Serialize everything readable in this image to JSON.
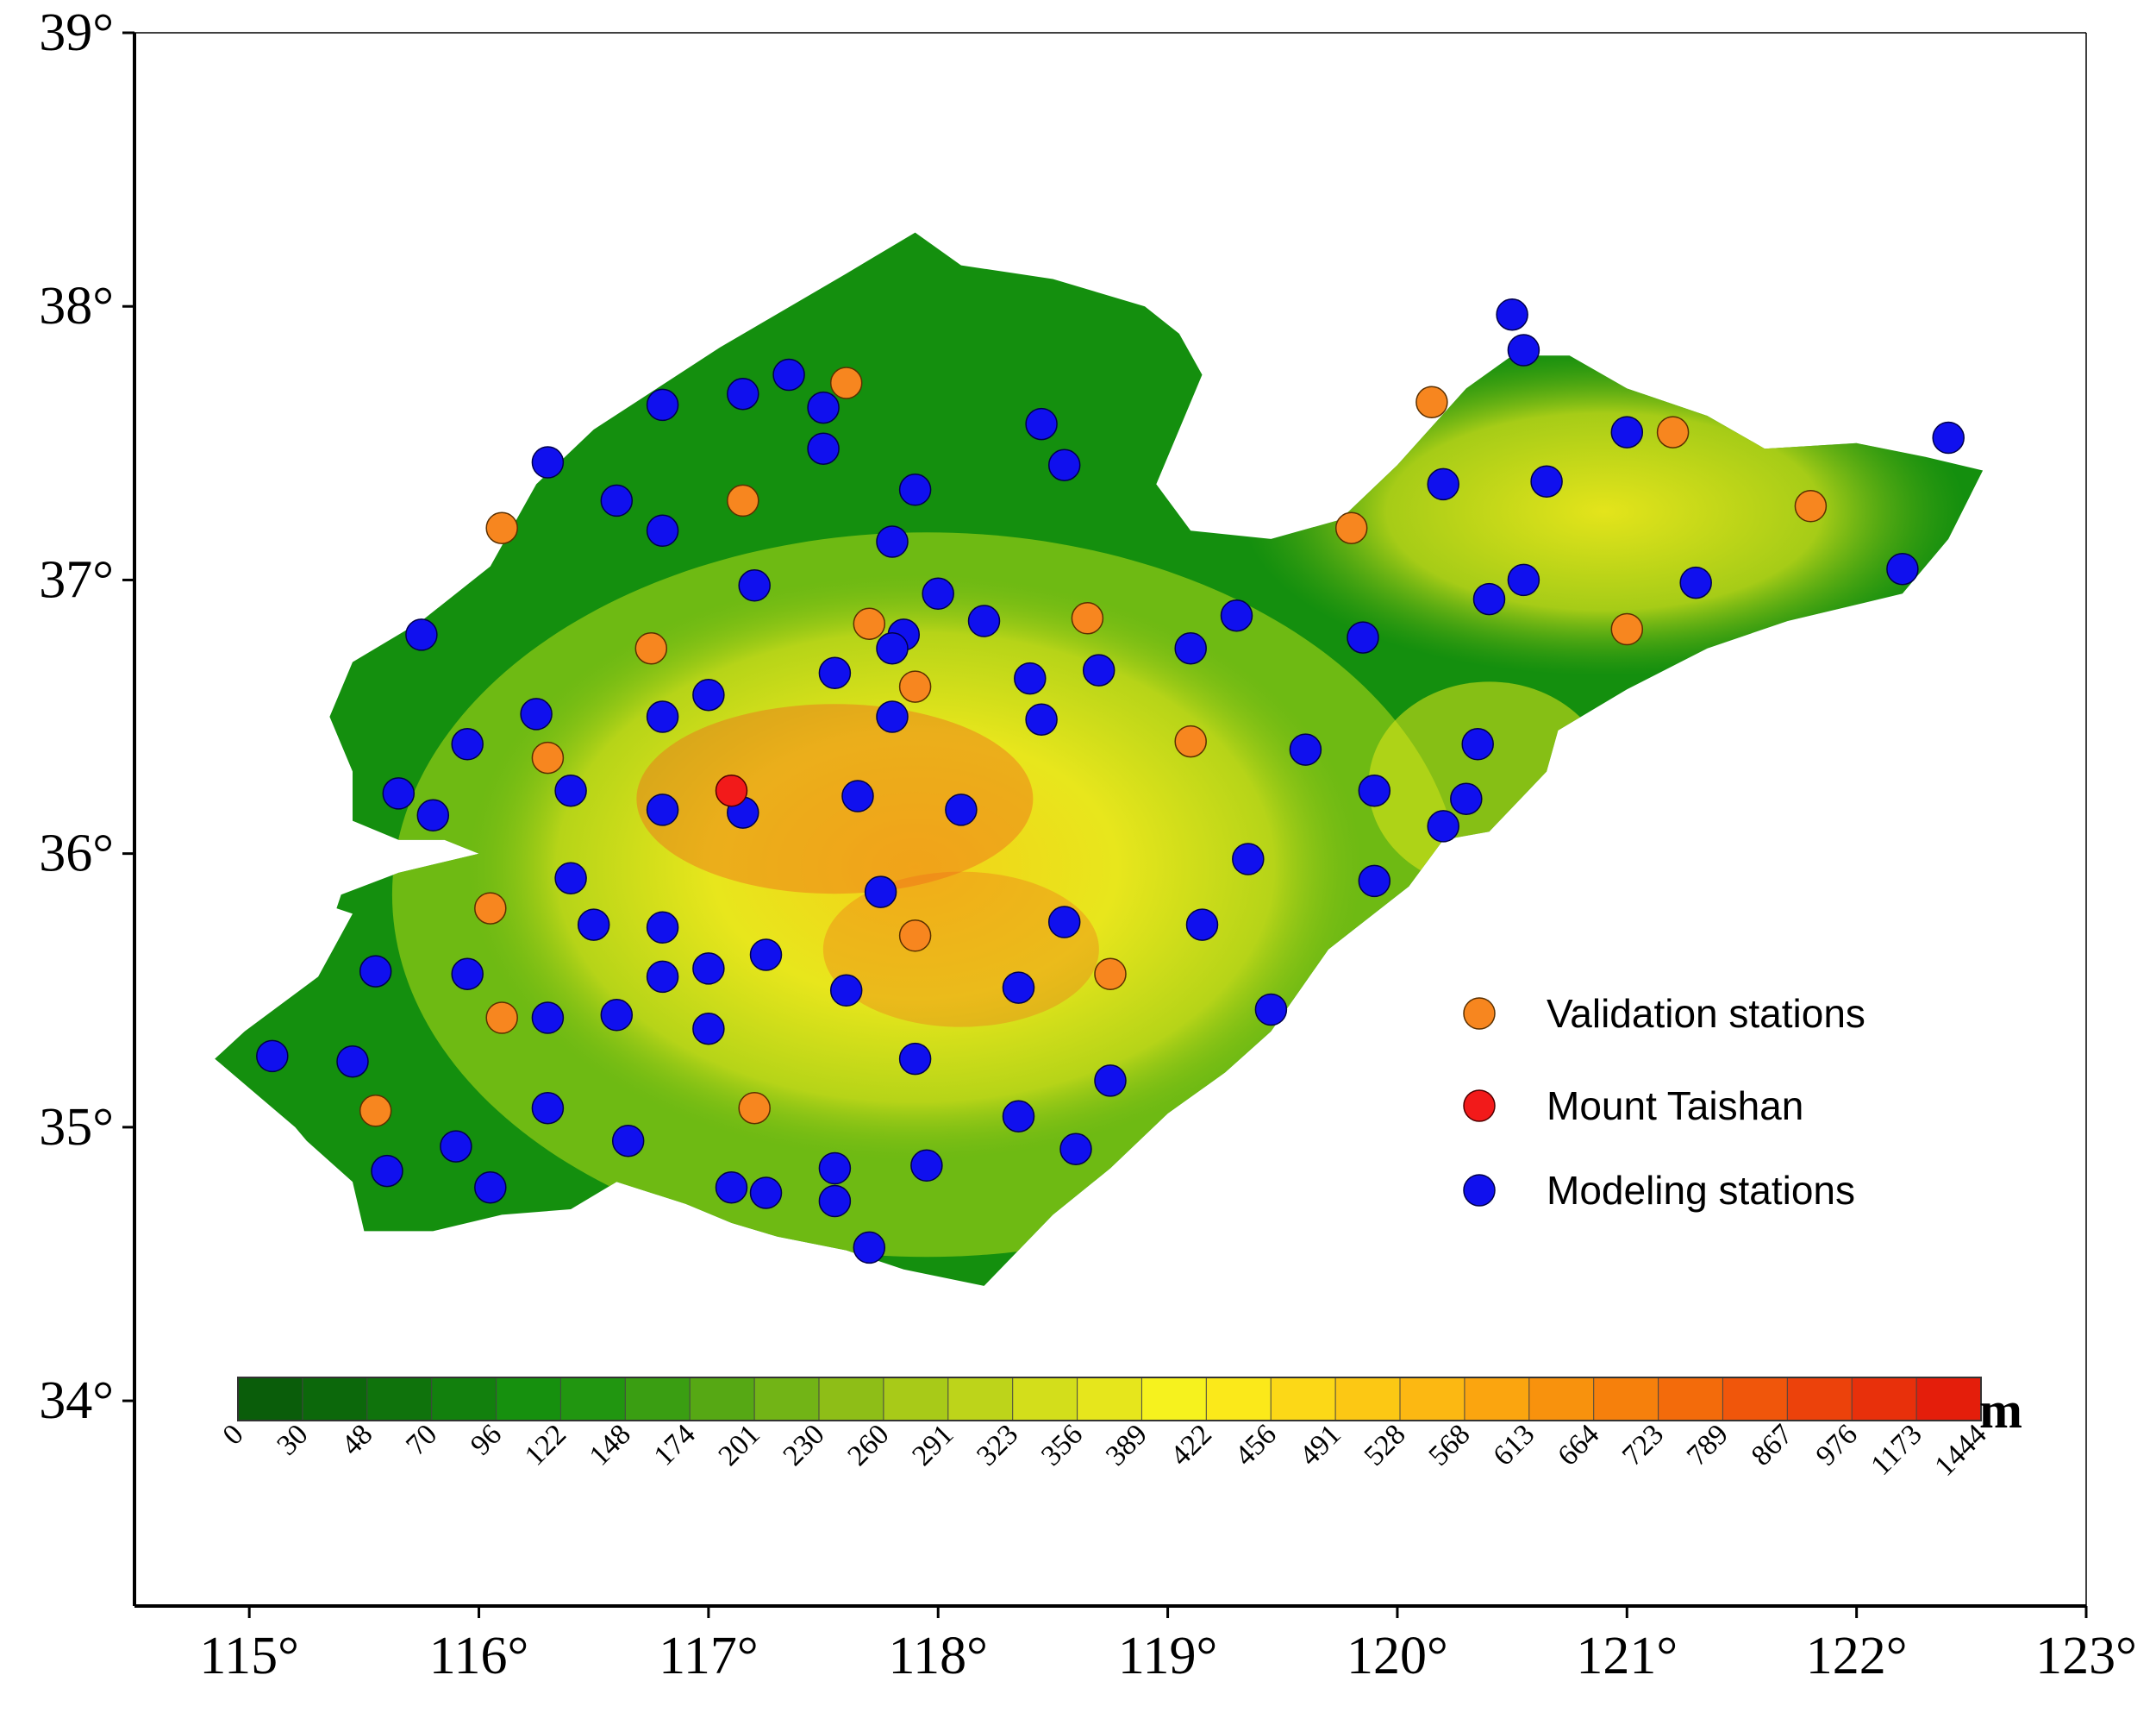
{
  "map": {
    "lon_range": [
      114.5,
      123
    ],
    "lat_range": [
      33.25,
      39
    ],
    "x_ticks": [
      "115°",
      "116°",
      "117°",
      "118°",
      "119°",
      "120°",
      "121°",
      "122°",
      "123°"
    ],
    "x_tick_values": [
      115,
      116,
      117,
      118,
      119,
      120,
      121,
      122,
      123
    ],
    "y_ticks": [
      "34°",
      "35°",
      "36°",
      "37°",
      "38°",
      "39°"
    ],
    "y_tick_values": [
      34,
      35,
      36,
      37,
      38,
      39
    ]
  },
  "colors": {
    "lowland": "#148f0e",
    "midland": "#8cc815",
    "upland": "#e3e81c",
    "peak": "#f06a1a",
    "validation": "#f7861f",
    "taishan": "#f21a1a",
    "modeling": "#1010ee"
  },
  "legend": {
    "validation_label": "Validation stations",
    "taishan_label": "Mount Taishan",
    "modeling_label": "Modeling stations"
  },
  "colorbar": {
    "unit": "m",
    "labels": [
      "0",
      "30",
      "48",
      "70",
      "96",
      "122",
      "148",
      "174",
      "201",
      "230",
      "260",
      "291",
      "323",
      "356",
      "389",
      "422",
      "456",
      "491",
      "528",
      "568",
      "613",
      "664",
      "723",
      "789",
      "867",
      "976",
      "1173",
      "1444"
    ],
    "colors": [
      "#0a5d0a",
      "#0c680b",
      "#0f730c",
      "#12800d",
      "#16900e",
      "#219610",
      "#3a9e12",
      "#56a814",
      "#72b416",
      "#8ebe17",
      "#a8ca18",
      "#bdd41a",
      "#d3de1b",
      "#e6e61c",
      "#f6f21e",
      "#fbe91a",
      "#fcd817",
      "#fcc814",
      "#fcb812",
      "#fba50f",
      "#f8920d",
      "#f6800c",
      "#f36b0b",
      "#f0560b",
      "#ec420b",
      "#e8300b",
      "#e41e0b"
    ]
  },
  "stations": {
    "validation": [
      {
        "lon": 117.6,
        "lat": 37.72
      },
      {
        "lon": 117.15,
        "lat": 37.29
      },
      {
        "lon": 116.1,
        "lat": 37.19
      },
      {
        "lon": 116.75,
        "lat": 36.75
      },
      {
        "lon": 117.7,
        "lat": 36.84
      },
      {
        "lon": 117.9,
        "lat": 36.61
      },
      {
        "lon": 118.65,
        "lat": 36.86
      },
      {
        "lon": 119.1,
        "lat": 36.41
      },
      {
        "lon": 116.3,
        "lat": 36.35
      },
      {
        "lon": 116.05,
        "lat": 35.8
      },
      {
        "lon": 117.9,
        "lat": 35.7
      },
      {
        "lon": 118.75,
        "lat": 35.56
      },
      {
        "lon": 116.1,
        "lat": 35.4
      },
      {
        "lon": 115.55,
        "lat": 35.06
      },
      {
        "lon": 117.2,
        "lat": 35.07
      },
      {
        "lon": 120.15,
        "lat": 37.65
      },
      {
        "lon": 119.8,
        "lat": 37.19
      },
      {
        "lon": 121.2,
        "lat": 37.54
      },
      {
        "lon": 121.8,
        "lat": 37.27
      },
      {
        "lon": 121.0,
        "lat": 36.82
      }
    ],
    "taishan": [
      {
        "lon": 117.1,
        "lat": 36.23
      }
    ],
    "modeling": [
      {
        "lon": 117.35,
        "lat": 37.75
      },
      {
        "lon": 117.15,
        "lat": 37.68
      },
      {
        "lon": 116.8,
        "lat": 37.64
      },
      {
        "lon": 117.5,
        "lat": 37.63
      },
      {
        "lon": 117.5,
        "lat": 37.48
      },
      {
        "lon": 116.3,
        "lat": 37.43
      },
      {
        "lon": 116.6,
        "lat": 37.29
      },
      {
        "lon": 116.8,
        "lat": 37.18
      },
      {
        "lon": 117.8,
        "lat": 37.14
      },
      {
        "lon": 117.9,
        "lat": 37.33
      },
      {
        "lon": 118.45,
        "lat": 37.57
      },
      {
        "lon": 118.55,
        "lat": 37.42
      },
      {
        "lon": 117.2,
        "lat": 36.98
      },
      {
        "lon": 118.0,
        "lat": 36.95
      },
      {
        "lon": 118.2,
        "lat": 36.85
      },
      {
        "lon": 117.85,
        "lat": 36.8
      },
      {
        "lon": 117.8,
        "lat": 36.75
      },
      {
        "lon": 115.75,
        "lat": 36.8
      },
      {
        "lon": 117.55,
        "lat": 36.66
      },
      {
        "lon": 118.4,
        "lat": 36.64
      },
      {
        "lon": 118.7,
        "lat": 36.67
      },
      {
        "lon": 119.1,
        "lat": 36.75
      },
      {
        "lon": 119.3,
        "lat": 36.87
      },
      {
        "lon": 119.85,
        "lat": 36.79
      },
      {
        "lon": 116.8,
        "lat": 36.5
      },
      {
        "lon": 117.0,
        "lat": 36.58
      },
      {
        "lon": 117.8,
        "lat": 36.5
      },
      {
        "lon": 118.45,
        "lat": 36.49
      },
      {
        "lon": 116.25,
        "lat": 36.51
      },
      {
        "lon": 115.95,
        "lat": 36.4
      },
      {
        "lon": 115.65,
        "lat": 36.22
      },
      {
        "lon": 115.8,
        "lat": 36.14
      },
      {
        "lon": 116.4,
        "lat": 36.23
      },
      {
        "lon": 116.8,
        "lat": 36.16
      },
      {
        "lon": 117.15,
        "lat": 36.15
      },
      {
        "lon": 117.65,
        "lat": 36.21
      },
      {
        "lon": 118.1,
        "lat": 36.16
      },
      {
        "lon": 119.6,
        "lat": 36.38
      },
      {
        "lon": 119.9,
        "lat": 36.23
      },
      {
        "lon": 116.4,
        "lat": 35.91
      },
      {
        "lon": 117.75,
        "lat": 35.86
      },
      {
        "lon": 118.55,
        "lat": 35.75
      },
      {
        "lon": 119.15,
        "lat": 35.74
      },
      {
        "lon": 119.35,
        "lat": 35.98
      },
      {
        "lon": 119.9,
        "lat": 35.9
      },
      {
        "lon": 116.5,
        "lat": 35.74
      },
      {
        "lon": 116.8,
        "lat": 35.73
      },
      {
        "lon": 115.55,
        "lat": 35.57
      },
      {
        "lon": 115.95,
        "lat": 35.56
      },
      {
        "lon": 116.8,
        "lat": 35.55
      },
      {
        "lon": 117.0,
        "lat": 35.58
      },
      {
        "lon": 117.25,
        "lat": 35.63
      },
      {
        "lon": 117.6,
        "lat": 35.5
      },
      {
        "lon": 118.35,
        "lat": 35.51
      },
      {
        "lon": 116.3,
        "lat": 35.4
      },
      {
        "lon": 116.6,
        "lat": 35.41
      },
      {
        "lon": 117.0,
        "lat": 35.36
      },
      {
        "lon": 115.1,
        "lat": 35.26
      },
      {
        "lon": 115.45,
        "lat": 35.24
      },
      {
        "lon": 117.9,
        "lat": 35.25
      },
      {
        "lon": 118.75,
        "lat": 35.17
      },
      {
        "lon": 119.45,
        "lat": 35.43
      },
      {
        "lon": 116.3,
        "lat": 35.07
      },
      {
        "lon": 118.35,
        "lat": 35.04
      },
      {
        "lon": 115.9,
        "lat": 34.93
      },
      {
        "lon": 116.65,
        "lat": 34.95
      },
      {
        "lon": 118.6,
        "lat": 34.92
      },
      {
        "lon": 115.6,
        "lat": 34.84
      },
      {
        "lon": 116.05,
        "lat": 34.78
      },
      {
        "lon": 117.1,
        "lat": 34.78
      },
      {
        "lon": 117.25,
        "lat": 34.76
      },
      {
        "lon": 117.55,
        "lat": 34.85
      },
      {
        "lon": 117.95,
        "lat": 34.86
      },
      {
        "lon": 117.55,
        "lat": 34.73
      },
      {
        "lon": 117.7,
        "lat": 34.56
      },
      {
        "lon": 120.5,
        "lat": 37.97
      },
      {
        "lon": 120.55,
        "lat": 37.84
      },
      {
        "lon": 121.0,
        "lat": 37.54
      },
      {
        "lon": 120.2,
        "lat": 37.35
      },
      {
        "lon": 120.65,
        "lat": 37.36
      },
      {
        "lon": 120.4,
        "lat": 36.93
      },
      {
        "lon": 120.55,
        "lat": 37.0
      },
      {
        "lon": 121.3,
        "lat": 36.99
      },
      {
        "lon": 122.2,
        "lat": 37.04
      },
      {
        "lon": 122.4,
        "lat": 37.52
      },
      {
        "lon": 120.35,
        "lat": 36.4
      },
      {
        "lon": 120.3,
        "lat": 36.2
      },
      {
        "lon": 120.2,
        "lat": 36.1
      }
    ]
  }
}
